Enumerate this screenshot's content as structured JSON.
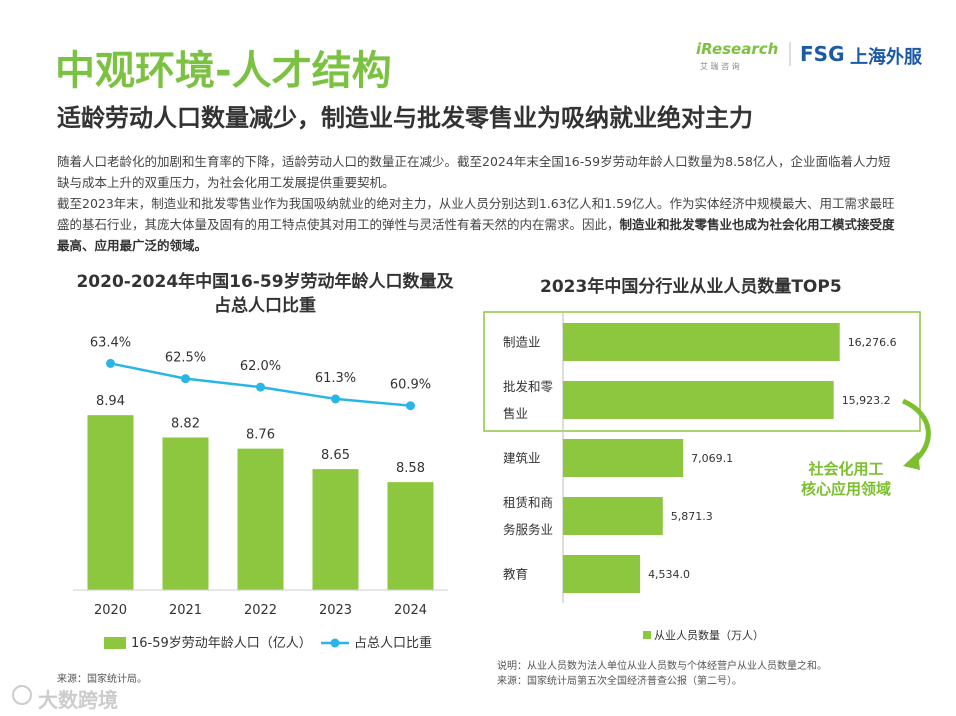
{
  "header": {
    "title": "中观环境-人才结构",
    "subtitle": "适龄劳动人口数量减少，制造业与批发零售业为吸纳就业绝对主力",
    "logo_iresearch": "iResearch",
    "logo_iresearch_cn": "艾 瑞 咨 询",
    "logo_fsg": "FSG",
    "logo_fsg_cn": "上海外服"
  },
  "paragraphs": [
    [
      "随着人口老龄化的加剧和生育率的下降，适龄劳动人口的数量正在减少。截至2024年末全国16-59岁劳动年龄人口数量为8.58亿人，企业面临着人力短缺与成本上升的双重压力，为社会化用工发展提供重要契机。"
    ],
    [
      "截至2023年末，制造业和批发零售业作为我国吸纳就业的绝对主力，从业人员分别达到1.63亿人和1.59亿人。作为实体经济中规模最大、用工需求最旺盛的基石行业，其庞大体量及固有的用工特点使其对用工的弹性与灵活性有着天然的内在需求。因此，",
      "制造业和批发零售业也成为社会化用工模式接受度最高、应用最广泛的领域。"
    ]
  ],
  "chart_data": [
    {
      "type": "combo",
      "title": "2020-2024年中国16-59岁劳动年龄人口数量及占总人口比重",
      "categories": [
        "2020",
        "2021",
        "2022",
        "2023",
        "2024"
      ],
      "ylim": [
        8,
        9.5
      ],
      "y2lim": [
        50,
        66.5
      ],
      "series": [
        {
          "name": "16-59岁劳动年龄人口（亿人）",
          "type": "bar",
          "color": "#8dc63f",
          "values": [
            8.94,
            8.82,
            8.76,
            8.65,
            8.58
          ]
        },
        {
          "name": "占总人口比重",
          "type": "line",
          "axis": "y2",
          "color": "#29b5e6",
          "values": [
            63.4,
            62.5,
            62.0,
            61.3,
            60.9
          ],
          "value_labels": [
            "63.4%",
            "62.5%",
            "62.0%",
            "61.3%",
            "60.9%"
          ]
        }
      ],
      "source": "来源：国家统计局。"
    },
    {
      "type": "bar",
      "orientation": "horizontal",
      "title": "2023年中国分行业从业人员数量TOP5",
      "categories": [
        "制造业",
        "批发和零售业",
        "建筑业",
        "租赁和商务服务业",
        "教育"
      ],
      "xlim": [
        0,
        20000
      ],
      "series": [
        {
          "name": "从业人员数量（万人）",
          "color": "#8dc63f",
          "values": [
            16276.6,
            15923.2,
            7069.1,
            5871.3,
            4534.0
          ],
          "value_labels": [
            "16,276.6",
            "15,923.2",
            "7,069.1",
            "5,871.3",
            "4,534.0"
          ]
        }
      ],
      "annotation": [
        "社会化用工",
        "核心应用领域"
      ],
      "notes": [
        "说明：从业人员数为法人单位从业人员数与个体经营户从业人员数量之和。",
        "来源：国家统计局第五次全国经济普查公报（第二号）。"
      ]
    }
  ],
  "watermark": "大数跨境"
}
